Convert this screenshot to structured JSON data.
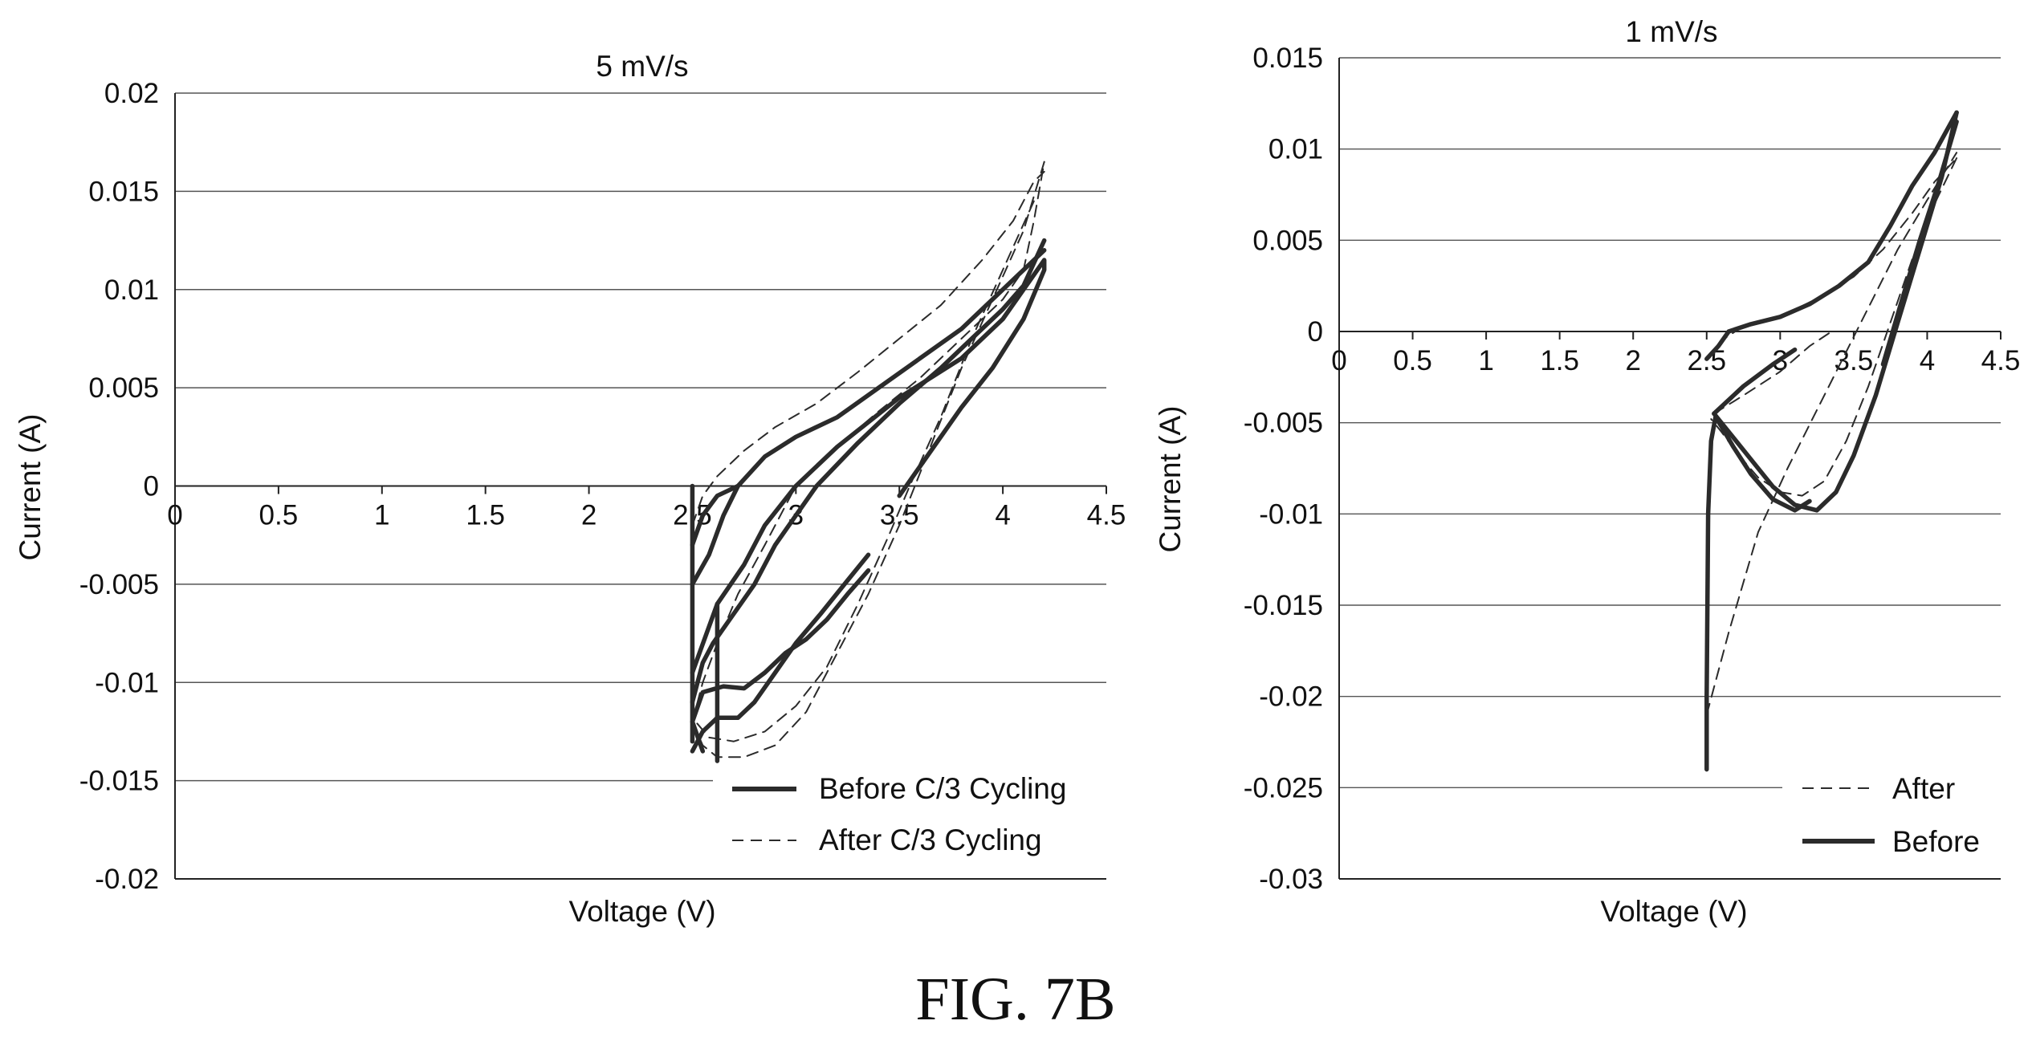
{
  "figure": {
    "caption": "FIG. 7B"
  },
  "chart_data": [
    {
      "type": "line",
      "title": "5 mV/s",
      "xlabel": "Voltage (V)",
      "ylabel": "Current (A)",
      "xlim": [
        0,
        4.5
      ],
      "ylim": [
        -0.02,
        0.02
      ],
      "xticks": [
        "0",
        "0.5",
        "1",
        "1.5",
        "2",
        "2.5",
        "3",
        "3.5",
        "4",
        "4.5"
      ],
      "yticks": [
        "0.02",
        "0.015",
        "0.01",
        "0.005",
        "0",
        "-0.005",
        "-0.01",
        "-0.015",
        "-0.02"
      ],
      "grid": "horizontal",
      "legend_position": "bottom-right",
      "series": [
        {
          "name": "Before C/3 Cycling",
          "style": "solid",
          "color": "#2b2b2b",
          "segments": [
            [
              [
                2.5,
                -0.005
              ],
              [
                2.58,
                -0.0035
              ],
              [
                2.65,
                -0.0015
              ],
              [
                2.72,
                0.0
              ]
            ],
            [
              [
                2.5,
                -0.013
              ],
              [
                2.5,
                0.0
              ]
            ],
            [
              [
                2.62,
                -0.014
              ],
              [
                2.62,
                -0.006
              ]
            ],
            [
              [
                2.5,
                -0.0095
              ],
              [
                2.62,
                -0.006
              ],
              [
                2.75,
                -0.004
              ],
              [
                2.85,
                -0.002
              ],
              [
                3.0,
                0.0
              ],
              [
                3.2,
                0.002
              ],
              [
                3.5,
                0.0045
              ],
              [
                3.8,
                0.0065
              ],
              [
                4.0,
                0.0085
              ],
              [
                4.2,
                0.0115
              ],
              [
                4.2,
                0.011
              ],
              [
                4.1,
                0.0085
              ],
              [
                3.95,
                0.006
              ],
              [
                3.8,
                0.004
              ],
              [
                3.6,
                0.001
              ],
              [
                3.5,
                -0.0005
              ]
            ],
            [
              [
                2.5,
                -0.011
              ],
              [
                2.55,
                -0.009
              ],
              [
                2.6,
                -0.008
              ],
              [
                2.7,
                -0.0065
              ],
              [
                2.8,
                -0.005
              ],
              [
                2.9,
                -0.003
              ],
              [
                3.0,
                -0.0015
              ],
              [
                3.1,
                0.0
              ],
              [
                3.3,
                0.0022
              ],
              [
                3.5,
                0.0042
              ],
              [
                3.7,
                0.006
              ],
              [
                3.85,
                0.0075
              ],
              [
                4.0,
                0.009
              ],
              [
                4.1,
                0.0102
              ],
              [
                4.2,
                0.0125
              ]
            ],
            [
              [
                2.5,
                -0.003
              ],
              [
                2.55,
                -0.0015
              ],
              [
                2.62,
                -0.0005
              ],
              [
                2.72,
                0.0
              ],
              [
                2.85,
                0.0015
              ],
              [
                3.0,
                0.0025
              ],
              [
                3.2,
                0.0035
              ],
              [
                3.4,
                0.005
              ],
              [
                3.6,
                0.0065
              ],
              [
                3.8,
                0.008
              ],
              [
                3.95,
                0.0095
              ],
              [
                4.05,
                0.0105
              ],
              [
                4.2,
                0.012
              ]
            ],
            [
              [
                2.55,
                -0.0135
              ],
              [
                2.5,
                -0.012
              ],
              [
                2.55,
                -0.0105
              ],
              [
                2.65,
                -0.0102
              ],
              [
                2.75,
                -0.0103
              ],
              [
                2.85,
                -0.0095
              ],
              [
                2.95,
                -0.0085
              ],
              [
                3.05,
                -0.0078
              ],
              [
                3.15,
                -0.0068
              ],
              [
                3.25,
                -0.0055
              ],
              [
                3.35,
                -0.0043
              ]
            ],
            [
              [
                2.5,
                -0.0135
              ],
              [
                2.55,
                -0.0125
              ],
              [
                2.62,
                -0.0118
              ],
              [
                2.72,
                -0.0118
              ],
              [
                2.8,
                -0.011
              ],
              [
                2.9,
                -0.0095
              ],
              [
                3.0,
                -0.008
              ],
              [
                3.12,
                -0.0065
              ],
              [
                3.25,
                -0.0048
              ],
              [
                3.35,
                -0.0035
              ]
            ]
          ]
        },
        {
          "name": "After C/3 Cycling",
          "style": "dashed",
          "color": "#2b2b2b",
          "segments": [
            [
              [
                2.5,
                -0.012
              ],
              [
                2.55,
                -0.01
              ],
              [
                2.62,
                -0.008
              ],
              [
                2.72,
                -0.0055
              ],
              [
                2.85,
                -0.003
              ],
              [
                3.0,
                0.0
              ],
              [
                3.2,
                0.002
              ],
              [
                3.4,
                0.0038
              ],
              [
                3.6,
                0.0055
              ],
              [
                3.8,
                0.0075
              ],
              [
                4.0,
                0.0095
              ],
              [
                4.1,
                0.011
              ],
              [
                4.15,
                0.0135
              ],
              [
                4.2,
                0.0165
              ]
            ],
            [
              [
                2.5,
                -0.002
              ],
              [
                2.55,
                -0.0005
              ],
              [
                2.62,
                0.0005
              ],
              [
                2.75,
                0.0018
              ],
              [
                2.9,
                0.003
              ],
              [
                3.1,
                0.0042
              ],
              [
                3.3,
                0.0058
              ],
              [
                3.5,
                0.0075
              ],
              [
                3.7,
                0.0092
              ],
              [
                3.9,
                0.0115
              ],
              [
                4.05,
                0.0135
              ],
              [
                4.15,
                0.0155
              ],
              [
                4.2,
                0.016
              ]
            ],
            [
              [
                4.2,
                0.0165
              ],
              [
                4.1,
                0.013
              ],
              [
                3.95,
                0.0095
              ],
              [
                3.8,
                0.006
              ],
              [
                3.65,
                0.002
              ],
              [
                3.5,
                -0.002
              ],
              [
                3.35,
                -0.0055
              ],
              [
                3.2,
                -0.0085
              ],
              [
                3.05,
                -0.0115
              ],
              [
                2.9,
                -0.0132
              ],
              [
                2.75,
                -0.0138
              ],
              [
                2.62,
                -0.0138
              ],
              [
                2.55,
                -0.0132
              ],
              [
                2.5,
                -0.012
              ]
            ],
            [
              [
                4.15,
                0.0145
              ],
              [
                4.0,
                0.011
              ],
              [
                3.85,
                0.0075
              ],
              [
                3.7,
                0.0035
              ],
              [
                3.55,
                0.0
              ],
              [
                3.45,
                -0.0025
              ],
              [
                3.3,
                -0.006
              ],
              [
                3.15,
                -0.0092
              ],
              [
                3.0,
                -0.0112
              ],
              [
                2.85,
                -0.0125
              ],
              [
                2.7,
                -0.013
              ],
              [
                2.58,
                -0.0128
              ],
              [
                2.5,
                -0.0118
              ]
            ]
          ]
        }
      ]
    },
    {
      "type": "line",
      "title": "1 mV/s",
      "xlabel": "Voltage (V)",
      "ylabel": "Current (A)",
      "xlim": [
        0,
        4.5
      ],
      "ylim": [
        -0.03,
        0.015
      ],
      "xticks": [
        "0",
        "0.5",
        "1",
        "1.5",
        "2",
        "2.5",
        "3",
        "3.5",
        "4",
        "4.5"
      ],
      "yticks": [
        "0.015",
        "0.01",
        "0.005",
        "0",
        "-0.005",
        "-0.01",
        "-0.015",
        "-0.02",
        "-0.025",
        "-0.03"
      ],
      "grid": "horizontal",
      "legend_position": "bottom-right",
      "series": [
        {
          "name": "After",
          "style": "dashed",
          "color": "#2b2b2b",
          "segments": [
            [
              [
                2.5,
                -0.0015
              ],
              [
                2.6,
                -0.0005
              ],
              [
                2.75,
                0.0003
              ],
              [
                3.0,
                0.0008
              ],
              [
                3.25,
                0.0018
              ],
              [
                3.5,
                0.003
              ],
              [
                3.7,
                0.0045
              ],
              [
                3.9,
                0.0065
              ],
              [
                4.05,
                0.0082
              ],
              [
                4.2,
                0.0095
              ]
            ],
            [
              [
                4.2,
                0.0095
              ],
              [
                4.05,
                0.007
              ],
              [
                3.9,
                0.004
              ],
              [
                3.75,
                0.0005
              ],
              [
                3.6,
                -0.003
              ],
              [
                3.45,
                -0.006
              ],
              [
                3.3,
                -0.0082
              ],
              [
                3.15,
                -0.009
              ],
              [
                3.0,
                -0.0088
              ],
              [
                2.85,
                -0.008
              ],
              [
                2.72,
                -0.0068
              ],
              [
                2.6,
                -0.0055
              ],
              [
                2.53,
                -0.0048
              ]
            ],
            [
              [
                2.5,
                -0.021
              ],
              [
                2.65,
                -0.0165
              ],
              [
                2.85,
                -0.011
              ],
              [
                3.05,
                -0.0075
              ],
              [
                3.3,
                -0.0035
              ],
              [
                3.55,
                0.0005
              ],
              [
                3.8,
                0.0045
              ],
              [
                4.0,
                0.0072
              ],
              [
                4.2,
                0.0098
              ]
            ],
            [
              [
                2.55,
                -0.0045
              ],
              [
                2.75,
                -0.0035
              ],
              [
                3.0,
                -0.0022
              ],
              [
                3.2,
                -0.0008
              ],
              [
                3.35,
                0.0
              ]
            ]
          ]
        },
        {
          "name": "Before",
          "style": "solid",
          "color": "#2b2b2b",
          "segments": [
            [
              [
                2.5,
                -0.0015
              ],
              [
                2.58,
                -0.0008
              ],
              [
                2.65,
                0.0
              ],
              [
                2.8,
                0.0004
              ],
              [
                3.0,
                0.0008
              ],
              [
                3.2,
                0.0015
              ],
              [
                3.4,
                0.0025
              ],
              [
                3.6,
                0.0038
              ],
              [
                3.75,
                0.0058
              ],
              [
                3.9,
                0.008
              ],
              [
                4.05,
                0.0098
              ],
              [
                4.2,
                0.012
              ]
            ],
            [
              [
                4.2,
                0.012
              ],
              [
                4.1,
                0.0085
              ],
              [
                3.95,
                0.0045
              ],
              [
                3.8,
                0.0005
              ],
              [
                3.65,
                -0.0035
              ],
              [
                3.5,
                -0.0068
              ],
              [
                3.38,
                -0.0088
              ],
              [
                3.25,
                -0.0098
              ],
              [
                3.1,
                -0.0095
              ],
              [
                2.95,
                -0.0085
              ],
              [
                2.82,
                -0.0072
              ],
              [
                2.7,
                -0.006
              ],
              [
                2.6,
                -0.005
              ],
              [
                2.55,
                -0.0045
              ]
            ],
            [
              [
                2.5,
                -0.024
              ],
              [
                2.5,
                -0.02
              ],
              [
                2.51,
                -0.01
              ],
              [
                2.53,
                -0.006
              ],
              [
                2.56,
                -0.0047
              ],
              [
                2.6,
                -0.0052
              ],
              [
                2.68,
                -0.0063
              ],
              [
                2.8,
                -0.0078
              ],
              [
                2.95,
                -0.0092
              ],
              [
                3.1,
                -0.0098
              ],
              [
                3.2,
                -0.0093
              ]
            ],
            [
              [
                2.55,
                -0.0045
              ],
              [
                2.75,
                -0.003
              ],
              [
                2.95,
                -0.0018
              ],
              [
                3.1,
                -0.001
              ]
            ],
            [
              [
                4.2,
                0.0115
              ],
              [
                4.08,
                0.0082
              ],
              [
                3.95,
                0.005
              ],
              [
                3.82,
                0.0015
              ],
              [
                3.7,
                -0.0018
              ]
            ]
          ]
        }
      ]
    }
  ]
}
